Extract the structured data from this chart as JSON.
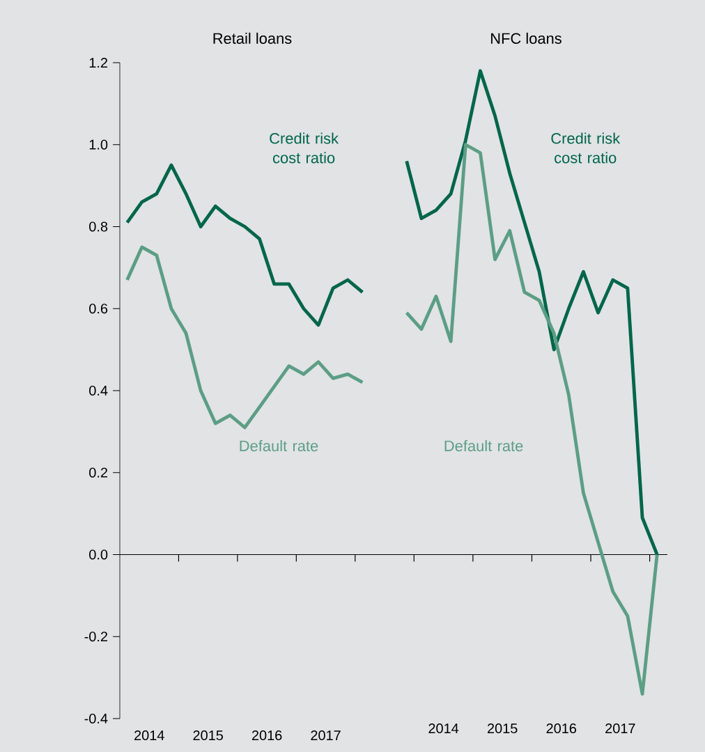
{
  "chart_data": [
    {
      "type": "line",
      "title": "Retail loans",
      "x": [
        2014.125,
        2014.375,
        2014.625,
        2014.875,
        2015.125,
        2015.375,
        2015.625,
        2015.875,
        2016.125,
        2016.375,
        2016.625,
        2016.875,
        2017.125,
        2017.375,
        2017.625,
        2017.875,
        2018.125
      ],
      "xlim": [
        2014,
        2018.5
      ],
      "xticks": [
        {
          "value": 2014.5,
          "label": "2014"
        },
        {
          "value": 2015.5,
          "label": "2015"
        },
        {
          "value": 2016.5,
          "label": "2016"
        },
        {
          "value": 2017.5,
          "label": "2017"
        },
        {
          "value": 2015,
          "label": null
        },
        {
          "value": 2016,
          "label": null
        },
        {
          "value": 2017,
          "label": null
        },
        {
          "value": 2018,
          "label": null
        }
      ],
      "ylim": [
        -0.4,
        1.2
      ],
      "yticks": [
        -0.4,
        -0.2,
        {
          "value": 0,
          "label": "0.0"
        },
        0.2,
        0.4,
        0.6,
        0.8,
        {
          "value": 1,
          "label": "1.0"
        },
        1.2
      ],
      "series": [
        {
          "name": "Credit risk cost ratio",
          "color": "#00664a",
          "values": [
            0.81,
            0.86,
            0.88,
            0.95,
            0.88,
            0.8,
            0.85,
            0.82,
            0.8,
            0.77,
            0.66,
            0.66,
            0.6,
            0.56,
            0.65,
            0.67,
            0.64
          ]
        },
        {
          "name": "Default rate",
          "color": "#5c9e84",
          "values": [
            0.67,
            0.75,
            0.73,
            0.6,
            0.54,
            0.4,
            0.32,
            0.34,
            0.31,
            0.36,
            0.41,
            0.46,
            0.44,
            0.47,
            0.43,
            0.44,
            0.42
          ]
        }
      ]
    },
    {
      "type": "line",
      "title": "NFC loans",
      "tick_labels": "x",
      "x": [
        2013.875,
        2014.125,
        2014.375,
        2014.625,
        2014.875,
        2015.125,
        2015.375,
        2015.625,
        2015.875,
        2016.125,
        2016.375,
        2016.625,
        2016.875,
        2017.125,
        2017.375,
        2017.625,
        2017.875,
        2018.125
      ],
      "xlim": [
        2013.5,
        2018.3
      ],
      "xticks": [
        {
          "value": 2014.5,
          "label": "2014"
        },
        {
          "value": 2015.5,
          "label": "2015"
        },
        {
          "value": 2016.5,
          "label": "2016"
        },
        {
          "value": 2017.5,
          "label": "2017"
        },
        {
          "value": 2014,
          "label": null
        },
        {
          "value": 2015,
          "label": null
        },
        {
          "value": 2016,
          "label": null
        },
        {
          "value": 2017,
          "label": null
        },
        {
          "value": 2018,
          "label": null
        }
      ],
      "ylim": [
        -0.4,
        1.2
      ],
      "series": [
        {
          "name": "Credit risk cost ratio",
          "color": "#00664a",
          "values": [
            0.96,
            0.82,
            0.84,
            0.88,
            1.01,
            1.18,
            1.07,
            0.93,
            0.81,
            0.69,
            0.5,
            0.6,
            0.69,
            0.59,
            0.67,
            0.65,
            0.09,
            0.0
          ]
        },
        {
          "name": "Default rate",
          "color": "#5c9e84",
          "values": [
            0.59,
            0.55,
            0.63,
            0.52,
            1.0,
            0.98,
            0.72,
            0.79,
            0.64,
            0.62,
            0.54,
            0.39,
            0.15,
            0.03,
            -0.09,
            -0.15,
            -0.34,
            0.0
          ]
        }
      ]
    }
  ]
}
